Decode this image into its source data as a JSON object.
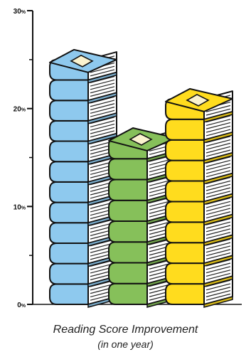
{
  "chart_data": {
    "type": "bar",
    "pictograph": "stacked-books",
    "values": [
      25,
      17,
      21
    ],
    "colors": [
      "#8ec9ee",
      "#86c05a",
      "#ffdc1e"
    ],
    "ylim": [
      0,
      30
    ],
    "yticks": [
      {
        "value": 0,
        "label": "0",
        "unit": "%"
      },
      {
        "value": 10,
        "label": "10",
        "unit": "%"
      },
      {
        "value": 20,
        "label": "20",
        "unit": "%"
      },
      {
        "value": 30,
        "label": "30",
        "unit": "%"
      }
    ],
    "minor_ticks": [
      5,
      15,
      25
    ],
    "caption": "Reading Score Improvement",
    "caption_sub": "(in one year)"
  }
}
